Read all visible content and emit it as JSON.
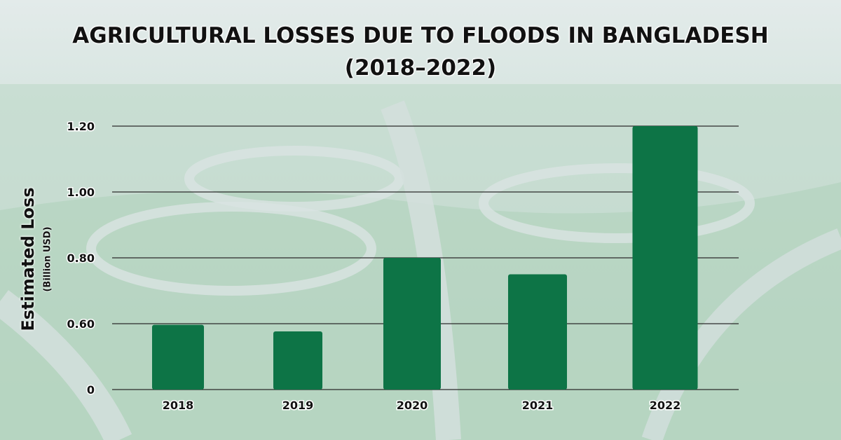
{
  "title_lines": [
    "AGRICULTURAL LOSSES DUE TO FLOODS IN BANGLADESH",
    "(2018–2022)"
  ],
  "colors": {
    "bar": "#0d7446",
    "gridline": "#2b2b2b",
    "text": "#111111"
  },
  "chart_data": {
    "type": "bar",
    "title": "AGRICULTURAL LOSSES DUE TO FLOODS IN BANGLADESH (2018–2022)",
    "categories": [
      "2018",
      "2019",
      "2020",
      "2021",
      "2022"
    ],
    "values": [
      0.59,
      0.53,
      0.8,
      0.75,
      1.2
    ],
    "ylabel": "Estimated Loss",
    "ylabel_unit": "(Billion USD)",
    "xlabel": "",
    "y_ticks": [
      {
        "value": 0,
        "label": "0"
      },
      {
        "value": 0.6,
        "label": "0.60"
      },
      {
        "value": 0.8,
        "label": "0.80"
      },
      {
        "value": 1.0,
        "label": "1.00"
      },
      {
        "value": 1.2,
        "label": "1.20"
      }
    ],
    "grid": true,
    "legend": "none"
  }
}
